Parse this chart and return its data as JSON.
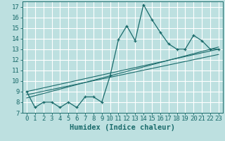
{
  "xlabel": "Humidex (Indice chaleur)",
  "ylabel": "",
  "background_color": "#bde0e0",
  "grid_color": "#ffffff",
  "line_color": "#1a6b6b",
  "x_data": [
    0,
    1,
    2,
    3,
    4,
    5,
    6,
    7,
    8,
    9,
    10,
    11,
    12,
    13,
    14,
    15,
    16,
    17,
    18,
    19,
    20,
    21,
    22,
    23
  ],
  "y_data": [
    9,
    7.5,
    8,
    8,
    7.5,
    8,
    7.5,
    8.5,
    8.5,
    8,
    10.5,
    13.9,
    15.2,
    13.8,
    17.2,
    15.8,
    14.6,
    13.5,
    13,
    13,
    14.3,
    13.8,
    13,
    13
  ],
  "ylim": [
    7,
    17.5
  ],
  "xlim": [
    -0.5,
    23.5
  ],
  "yticks": [
    7,
    8,
    9,
    10,
    11,
    12,
    13,
    14,
    15,
    16,
    17
  ],
  "xticks": [
    0,
    1,
    2,
    3,
    4,
    5,
    6,
    7,
    8,
    9,
    10,
    11,
    12,
    13,
    14,
    15,
    16,
    17,
    18,
    19,
    20,
    21,
    22,
    23
  ],
  "regression_lines": [
    {
      "x_start": 0,
      "y_start": 9.0,
      "x_end": 23,
      "y_end": 13.0
    },
    {
      "x_start": 0,
      "y_start": 8.7,
      "x_end": 23,
      "y_end": 12.5
    },
    {
      "x_start": 0,
      "y_start": 8.4,
      "x_end": 23,
      "y_end": 13.2
    }
  ],
  "tick_fontsize": 6.5,
  "label_fontsize": 7.5
}
